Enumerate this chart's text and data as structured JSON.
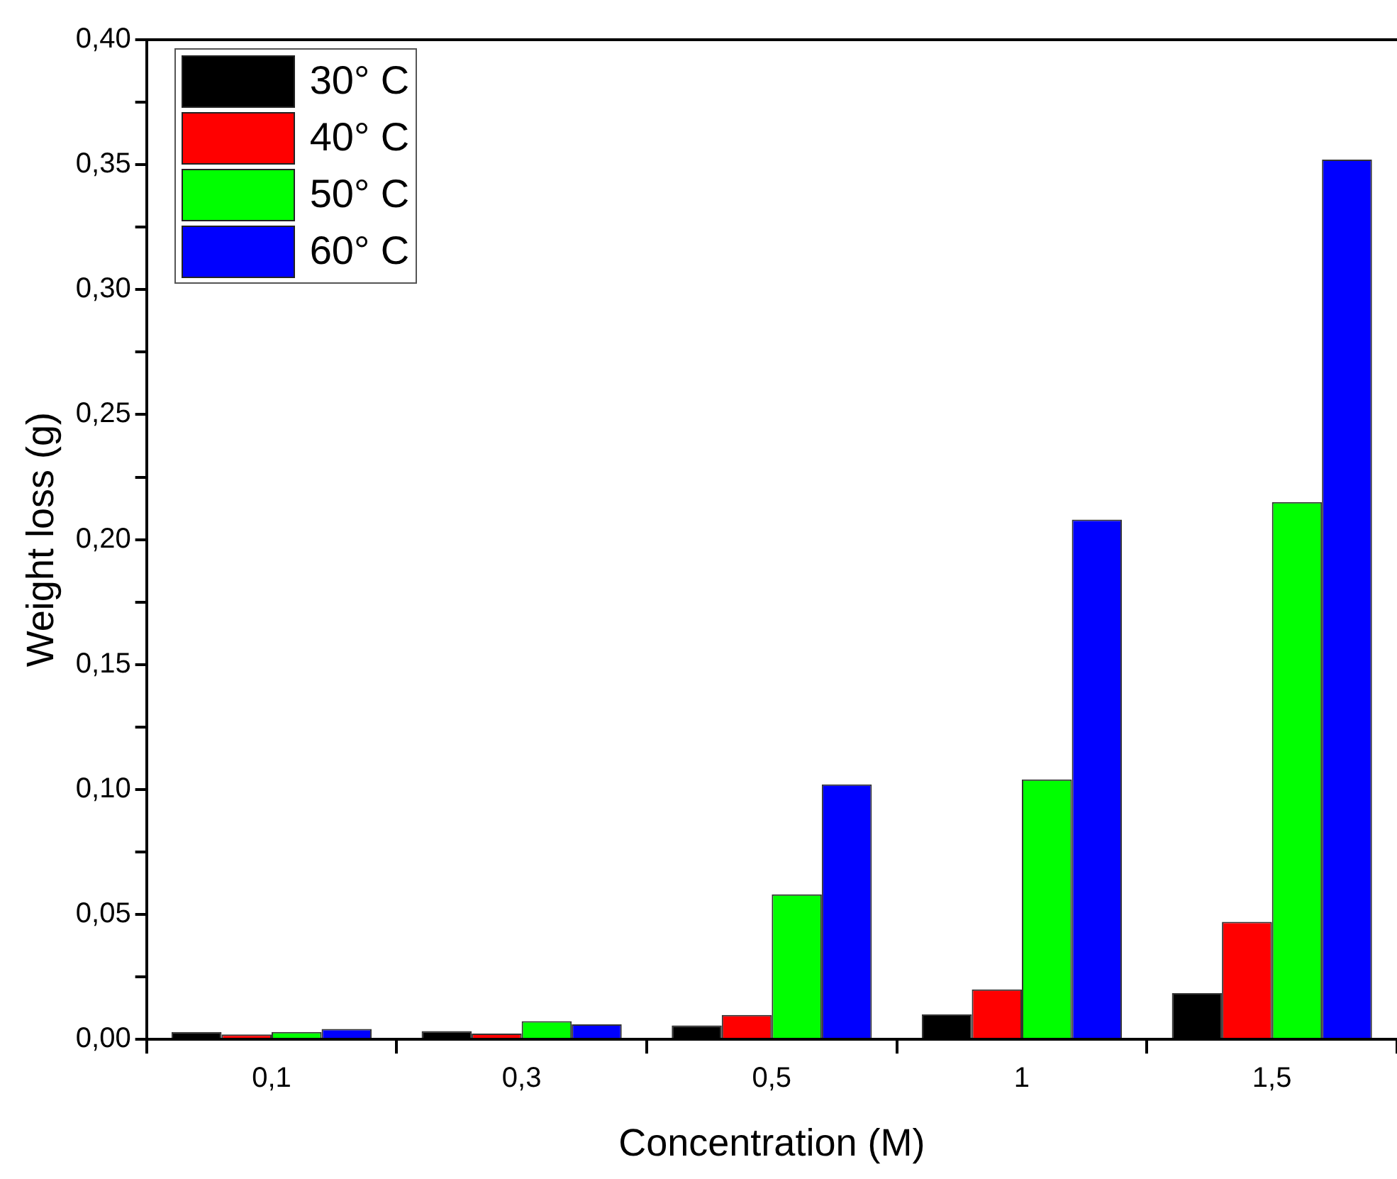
{
  "chart_data": {
    "type": "bar",
    "xlabel": "Concentration (M)",
    "ylabel": "Weight loss (g)",
    "categories": [
      "0,1",
      "0,3",
      "0,5",
      "1",
      "1,5"
    ],
    "series": [
      {
        "name": "30° C",
        "color": "#000000",
        "values": [
          0.003,
          0.0033,
          0.0056,
          0.01,
          0.0185
        ]
      },
      {
        "name": "40° C",
        "color": "#ff0000",
        "values": [
          0.002,
          0.0023,
          0.0098,
          0.02,
          0.047
        ]
      },
      {
        "name": "50° C",
        "color": "#00ff00",
        "values": [
          0.003,
          0.0073,
          0.058,
          0.104,
          0.215
        ]
      },
      {
        "name": "60° C",
        "color": "#0000ff",
        "values": [
          0.0042,
          0.006,
          0.102,
          0.208,
          0.352
        ]
      }
    ],
    "ylim": [
      0,
      0.4
    ],
    "yticks": [
      {
        "value": 0,
        "label": "0,00"
      },
      {
        "value": 0.025,
        "label": null
      },
      {
        "value": 0.05,
        "label": "0,05"
      },
      {
        "value": 0.075,
        "label": null
      },
      {
        "value": 0.1,
        "label": "0,10"
      },
      {
        "value": 0.125,
        "label": null
      },
      {
        "value": 0.15,
        "label": "0,15"
      },
      {
        "value": 0.175,
        "label": null
      },
      {
        "value": 0.2,
        "label": "0,20"
      },
      {
        "value": 0.225,
        "label": null
      },
      {
        "value": 0.25,
        "label": "0,25"
      },
      {
        "value": 0.275,
        "label": null
      },
      {
        "value": 0.3,
        "label": "0,30"
      },
      {
        "value": 0.325,
        "label": null
      },
      {
        "value": 0.35,
        "label": "0,35"
      },
      {
        "value": 0.375,
        "label": null
      },
      {
        "value": 0.4,
        "label": "0,40"
      }
    ],
    "grid": false,
    "legend": "top left"
  }
}
